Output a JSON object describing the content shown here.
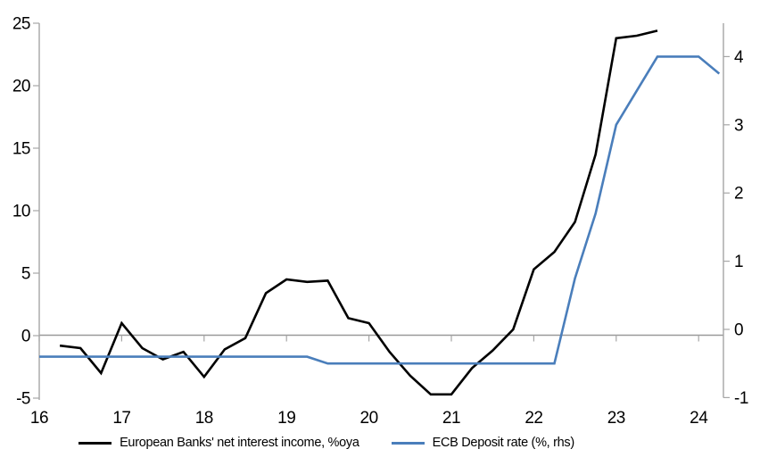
{
  "legend": {
    "items": [
      {
        "label": "European Banks' net interest income, %oya"
      },
      {
        "label": "ECB Deposit rate (%, rhs)"
      }
    ]
  },
  "colors": {
    "nii_line": "#000000",
    "ecb_line": "#4a7ebb",
    "axis": "#a6a6a6",
    "zero_line": "#999999",
    "text": "#000000",
    "background": "#ffffff"
  },
  "chart_data": {
    "type": "line",
    "title": "",
    "xlabel": "",
    "ylabel_left": "",
    "ylabel_right": "",
    "x_axis": {
      "tick_labels": [
        "16",
        "17",
        "18",
        "19",
        "20",
        "21",
        "22",
        "23",
        "24"
      ],
      "tick_values": [
        16,
        17,
        18,
        19,
        20,
        21,
        22,
        23,
        24
      ],
      "range": [
        16,
        24.3
      ]
    },
    "y_axis_left": {
      "tick_values": [
        -5,
        0,
        5,
        10,
        15,
        20,
        25
      ],
      "range": [
        -5,
        25
      ]
    },
    "y_axis_right": {
      "tick_values": [
        -1,
        0,
        1,
        2,
        3,
        4
      ],
      "range": [
        -1,
        4.5
      ]
    },
    "grid": "zero-line-only",
    "legend_position": "bottom",
    "series": [
      {
        "name": "European Banks' net interest income, %oya",
        "axis": "left",
        "color": "#000000",
        "x": [
          16.25,
          16.5,
          16.75,
          17.0,
          17.25,
          17.5,
          17.75,
          18.0,
          18.25,
          18.5,
          18.75,
          19.0,
          19.25,
          19.5,
          19.75,
          20.0,
          20.25,
          20.5,
          20.75,
          21.0,
          21.25,
          21.5,
          21.75,
          22.0,
          22.25,
          22.5,
          22.75,
          23.0,
          23.25,
          23.5
        ],
        "values": [
          -0.8,
          -1.0,
          -3.0,
          1.0,
          -1.0,
          -1.9,
          -1.3,
          -3.3,
          -1.1,
          -0.2,
          3.4,
          4.5,
          4.3,
          4.4,
          1.4,
          1.0,
          -1.3,
          -3.2,
          -4.7,
          -4.7,
          -2.6,
          -1.2,
          0.5,
          5.3,
          6.7,
          9.1,
          14.5,
          23.8,
          24.0,
          24.4
        ]
      },
      {
        "name": "ECB Deposit rate (%, rhs)",
        "axis": "right",
        "color": "#4a7ebb",
        "x": [
          16.0,
          19.25,
          19.5,
          22.25,
          22.5,
          22.75,
          23.0,
          23.25,
          23.5,
          23.75,
          24.0,
          24.25
        ],
        "values": [
          -0.4,
          -0.4,
          -0.5,
          -0.5,
          0.75,
          1.7,
          3.0,
          3.5,
          4.0,
          4.0,
          4.0,
          3.75
        ]
      }
    ]
  }
}
